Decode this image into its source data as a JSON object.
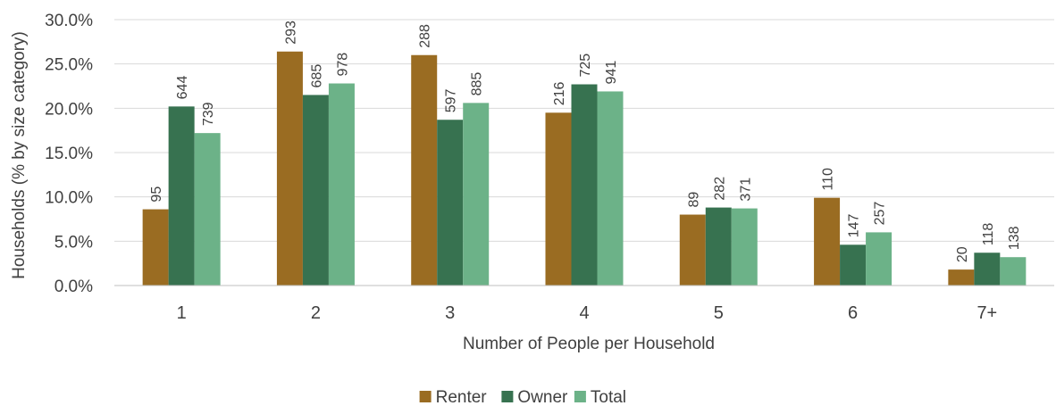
{
  "chart_data": {
    "type": "bar",
    "xlabel": "Number of People per Household",
    "ylabel": "Households (% by size category)",
    "ylim": [
      0,
      30
    ],
    "y_ticks": [
      "0.0%",
      "5.0%",
      "10.0%",
      "15.0%",
      "20.0%",
      "25.0%",
      "30.0%"
    ],
    "y_tick_values": [
      0,
      5,
      10,
      15,
      20,
      25,
      30
    ],
    "categories": [
      "1",
      "2",
      "3",
      "4",
      "5",
      "6",
      "7+"
    ],
    "grid": true,
    "legend_position": "bottom",
    "series": [
      {
        "name": "Renter",
        "color": "#9A6C22",
        "values": [
          8.6,
          26.4,
          26.0,
          19.5,
          8.0,
          9.9,
          1.8
        ],
        "labels": [
          "95",
          "293",
          "288",
          "216",
          "89",
          "110",
          "20"
        ]
      },
      {
        "name": "Owner",
        "color": "#377250",
        "values": [
          20.2,
          21.5,
          18.7,
          22.7,
          8.8,
          4.6,
          3.7
        ],
        "labels": [
          "644",
          "685",
          "597",
          "725",
          "282",
          "147",
          "118"
        ]
      },
      {
        "name": "Total",
        "color": "#6CB288",
        "values": [
          17.2,
          22.8,
          20.6,
          21.9,
          8.7,
          6.0,
          3.2
        ],
        "labels": [
          "739",
          "978",
          "885",
          "941",
          "371",
          "257",
          "138"
        ]
      }
    ]
  }
}
